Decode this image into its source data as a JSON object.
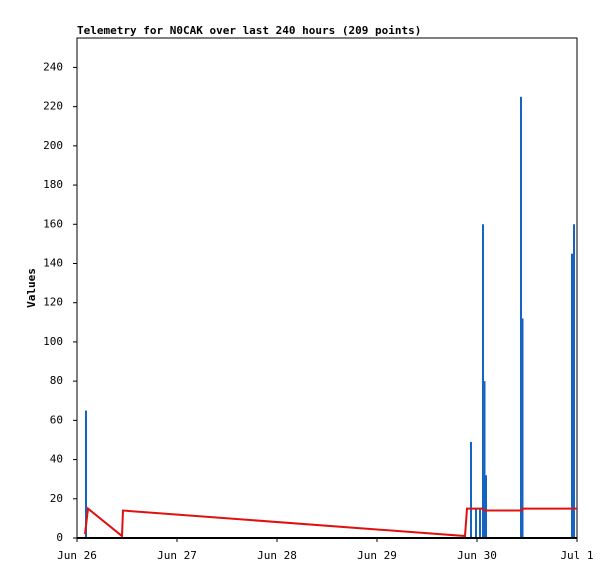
{
  "chart_data": {
    "type": "telemetry",
    "title": "Telemetry for N0CAK over last 240 hours (209 points)",
    "y_label": "Values",
    "xlim": [
      0,
      5
    ],
    "ylim": [
      0,
      255
    ],
    "xticks": [
      {
        "value": 0,
        "label": "Jun 26"
      },
      {
        "value": 1,
        "label": "Jun 27"
      },
      {
        "value": 2,
        "label": "Jun 28"
      },
      {
        "value": 3,
        "label": "Jun 29"
      },
      {
        "value": 4,
        "label": "Jun 30"
      },
      {
        "value": 5,
        "label": "Jul 1"
      }
    ],
    "yticks": [
      0,
      20,
      40,
      60,
      80,
      100,
      120,
      140,
      160,
      180,
      200,
      220,
      240
    ],
    "bars": {
      "color": "#1565c0",
      "x": [
        0.09,
        3.94,
        3.99,
        4.03,
        4.06,
        4.075,
        4.09,
        4.44,
        4.455,
        4.95,
        4.97
      ],
      "values": [
        65,
        49,
        15,
        15,
        160,
        80,
        32,
        225,
        112,
        145,
        160
      ]
    },
    "line": {
      "color": "#e01010",
      "x": [
        0.08,
        0.11,
        0.45,
        0.46,
        3.88,
        3.9,
        4.05,
        4.08,
        4.45,
        4.46,
        5.0
      ],
      "values": [
        2,
        15,
        1,
        14,
        1,
        15,
        15,
        14,
        14,
        15,
        15
      ]
    }
  }
}
